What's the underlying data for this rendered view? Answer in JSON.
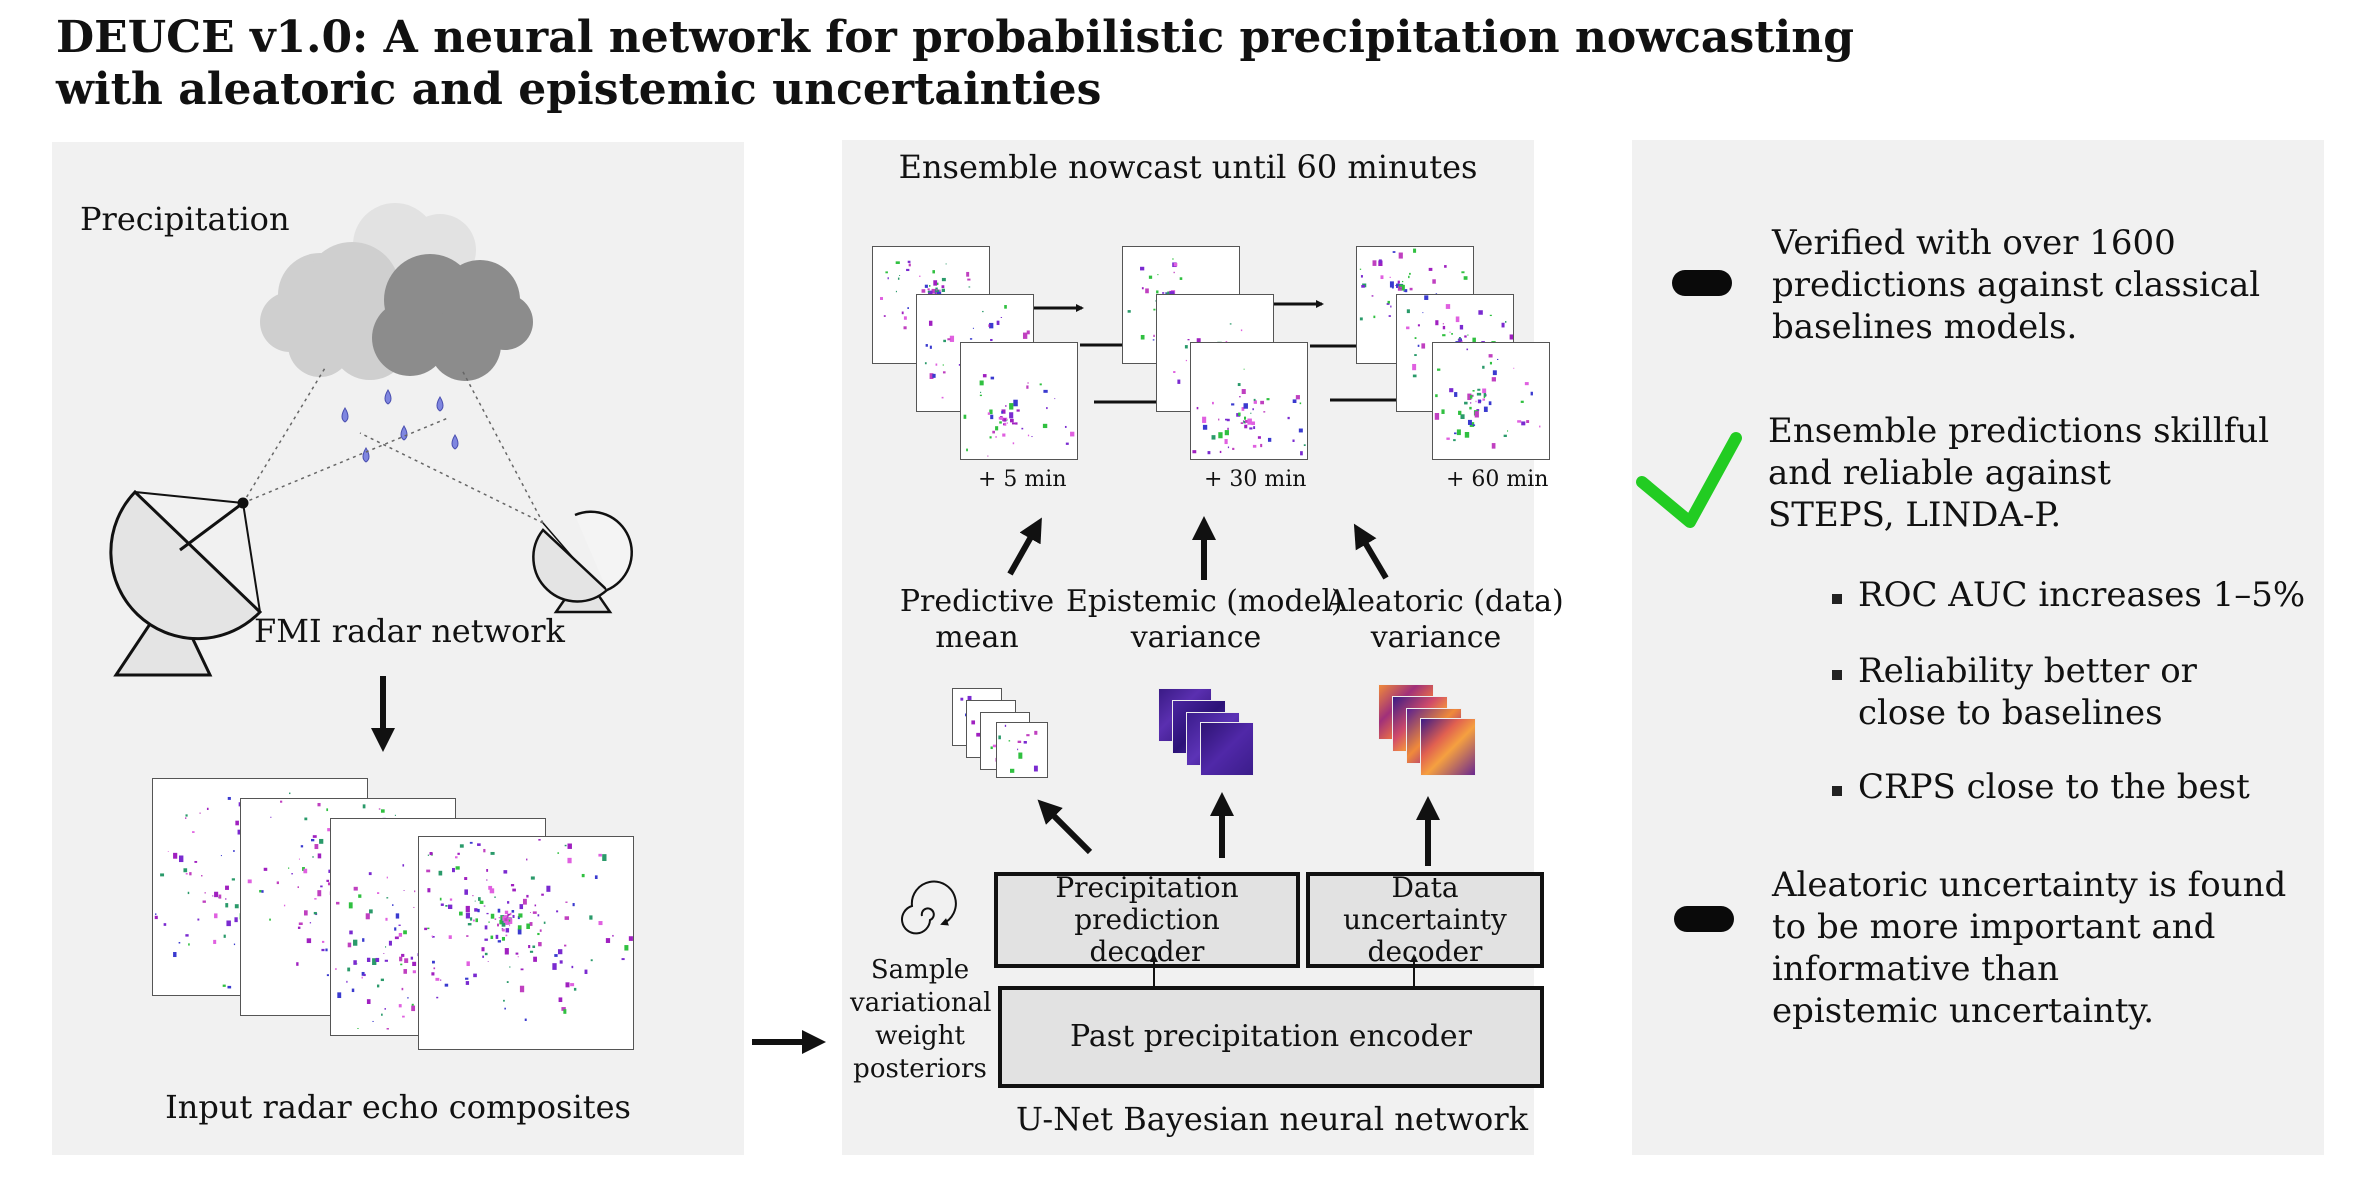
{
  "title_line1": "DEUCE v1.0: A neural network for probabilistic precipitation nowcasting",
  "title_line2": "with aleatoric and epistemic uncertainties",
  "left": {
    "precip_label": "Precipitation",
    "radar_label": "FMI radar network",
    "input_label": "Input radar echo composites"
  },
  "middle": {
    "nowcast_title": "Ensemble nowcast until 60 minutes",
    "t5": "+ 5 min",
    "t30": "+ 30 min",
    "t60": "+ 60 min",
    "pred_mean_1": "Predictive",
    "pred_mean_2": "mean",
    "epi_1": "Epistemic (model)",
    "epi_2": "variance",
    "alea_1": "Aleatoric (data)",
    "alea_2": "variance",
    "dec1_1": "Precipitation prediction",
    "dec1_2": "decoder",
    "dec2_1": "Data uncertainty",
    "dec2_2": "decoder",
    "encoder": "Past precipitation encoder",
    "sample_1": "Sample",
    "sample_2": "variational",
    "sample_3": "weight",
    "sample_4": "posteriors",
    "unet": "U-Net Bayesian neural network"
  },
  "right": {
    "item1_l1": "Verified with over 1600",
    "item1_l2": "predictions against classical",
    "item1_l3": "baselines models.",
    "item2_l1": "Ensemble predictions skillful",
    "item2_l2": "and reliable against",
    "item2_l3": "STEPS, LINDA-P.",
    "sub1": "ROC AUC increases 1–5%",
    "sub2_l1": "Reliability better or",
    "sub2_l2": "close to baselines",
    "sub3": "CRPS close to the best",
    "item3_l1": "Aleatoric uncertainty is found",
    "item3_l2": "to be more important and",
    "item3_l3": "informative than",
    "item3_l4": "epistemic uncertainty."
  },
  "colors": {
    "panel_bg": "#f1f1f1",
    "check": "#22cc22",
    "cloud_light": "#cfcfcf",
    "cloud_dark": "#8c8c8c",
    "raindrop": "#7f86e0"
  }
}
